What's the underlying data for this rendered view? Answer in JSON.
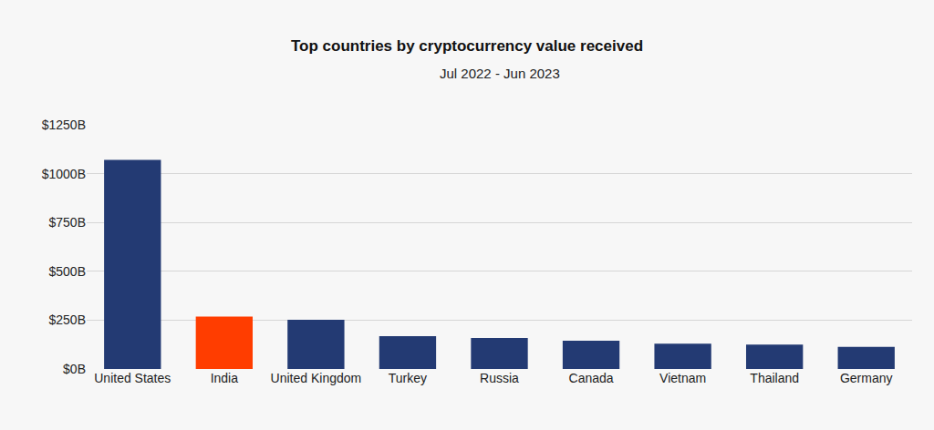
{
  "chart_data": {
    "type": "bar",
    "title": "Top countries by cryptocurrency value received",
    "subtitle": "Jul 2022 - Jun 2023",
    "categories": [
      "United States",
      "India",
      "United Kingdom",
      "Turkey",
      "Russia",
      "Canada",
      "Vietnam",
      "Thailand",
      "Germany"
    ],
    "values": [
      1070,
      268,
      252,
      168,
      158,
      145,
      130,
      125,
      113
    ],
    "colors": [
      "#233a73",
      "#ff3d00",
      "#233a73",
      "#233a73",
      "#233a73",
      "#233a73",
      "#233a73",
      "#233a73",
      "#233a73"
    ],
    "ylim": [
      0,
      1250
    ],
    "yticks": [
      {
        "value": 0,
        "label": "$0B"
      },
      {
        "value": 250,
        "label": "$250B"
      },
      {
        "value": 500,
        "label": "$500B"
      },
      {
        "value": 750,
        "label": "$750B"
      },
      {
        "value": 1000,
        "label": "$1000B"
      },
      {
        "value": 1250,
        "label": "$1250B"
      }
    ],
    "grid": true
  }
}
